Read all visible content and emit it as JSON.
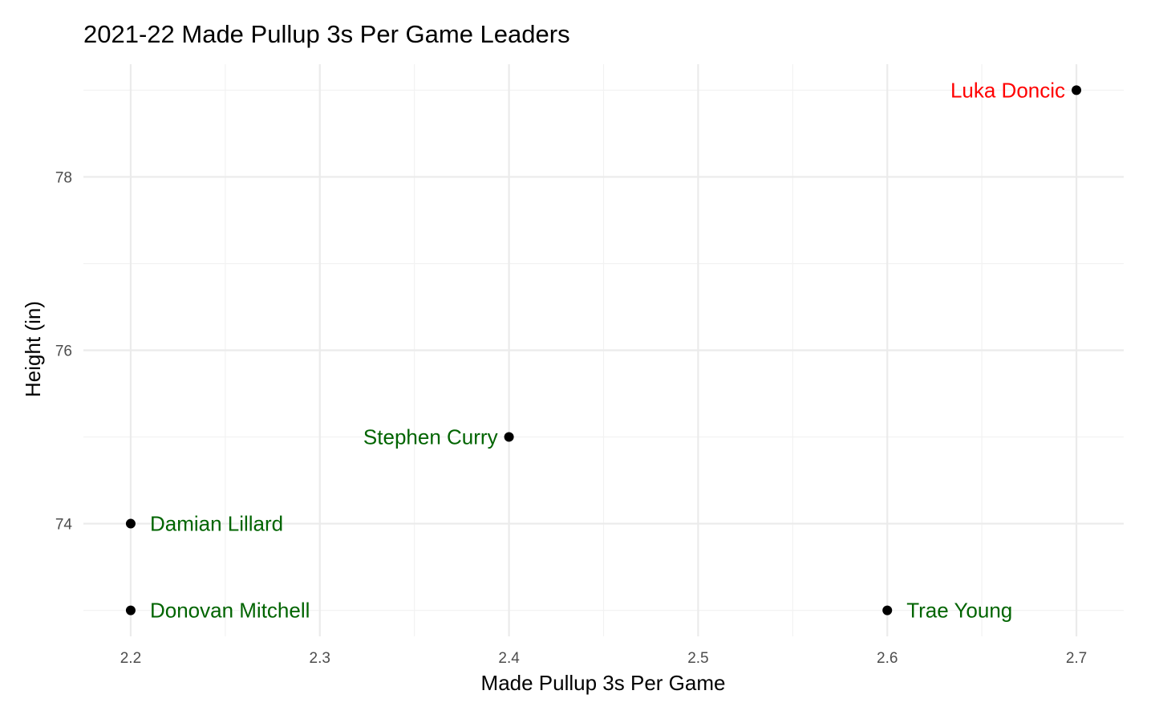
{
  "chart_data": {
    "type": "scatter",
    "title": "2021-22 Made Pullup 3s Per Game Leaders",
    "xlabel": "Made Pullup 3s Per Game",
    "ylabel": "Height (in)",
    "xlim": [
      2.175,
      2.725
    ],
    "ylim": [
      72.7,
      79.3
    ],
    "x_ticks": [
      2.2,
      2.3,
      2.4,
      2.5,
      2.6,
      2.7
    ],
    "x_tick_labels": [
      "2.2",
      "2.3",
      "2.4",
      "2.5",
      "2.6",
      "2.7"
    ],
    "x_minor_ticks": [
      2.25,
      2.35,
      2.45,
      2.55,
      2.65
    ],
    "y_ticks": [
      74,
      76,
      78
    ],
    "y_tick_labels": [
      "74",
      "76",
      "78"
    ],
    "y_minor_ticks": [
      73,
      75,
      77,
      79
    ],
    "grid": true,
    "legend": "none",
    "points": [
      {
        "name": "Luka Doncic",
        "x": 2.7,
        "y": 79,
        "label_color": "#ff0000",
        "label_side": "left"
      },
      {
        "name": "Stephen Curry",
        "x": 2.4,
        "y": 75,
        "label_color": "#006400",
        "label_side": "left"
      },
      {
        "name": "Damian Lillard",
        "x": 2.2,
        "y": 74,
        "label_color": "#006400",
        "label_side": "right"
      },
      {
        "name": "Donovan Mitchell",
        "x": 2.2,
        "y": 73,
        "label_color": "#006400",
        "label_side": "right"
      },
      {
        "name": "Trae Young",
        "x": 2.6,
        "y": 73,
        "label_color": "#006400",
        "label_side": "right"
      }
    ],
    "point_color": "#000000"
  }
}
